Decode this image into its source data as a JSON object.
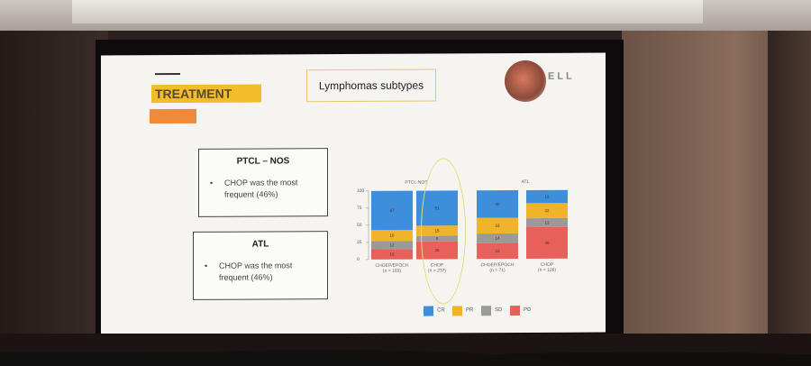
{
  "slide": {
    "title": "TREATMENT",
    "subtitle": "Lymphomas subtypes",
    "logo_text": "ELL",
    "box1": {
      "heading": "PTCL – NOS",
      "bullet": "CHOP was the most frequent (46%)"
    },
    "box2": {
      "heading": "ATL",
      "bullet": "CHOP was the most frequent (46%)"
    },
    "colors": {
      "title_bg": "#f2bd28",
      "accent_bar": "#ef8a3c"
    }
  },
  "chart_data": {
    "type": "bar",
    "stacked": true,
    "panels": [
      "PTCL-NOS",
      "ATL"
    ],
    "categories": [
      "CHOEP/EPOCH",
      "CHOP",
      "CHOEP/EPOCH",
      "CHOP"
    ],
    "n_labels": [
      "(n = 183)",
      "(n = 237)",
      "(n = 71)",
      "(n = 126)"
    ],
    "ylim": [
      0,
      100
    ],
    "yticks": [
      0,
      25,
      50,
      75,
      100
    ],
    "series": [
      {
        "name": "PD",
        "color": "#e8605a",
        "values": [
          15,
          26,
          23,
          46
        ]
      },
      {
        "name": "SD",
        "color": "#9a9a96",
        "values": [
          12,
          8,
          14,
          13
        ]
      },
      {
        "name": "PR",
        "color": "#f0b32a",
        "values": [
          16,
          15,
          23,
          22
        ]
      },
      {
        "name": "CR",
        "color": "#3d8fdc",
        "values": [
          57,
          51,
          40,
          19
        ]
      }
    ],
    "legend_order": [
      "CR",
      "PR",
      "SD",
      "PD"
    ],
    "legend_position": "bottom"
  }
}
